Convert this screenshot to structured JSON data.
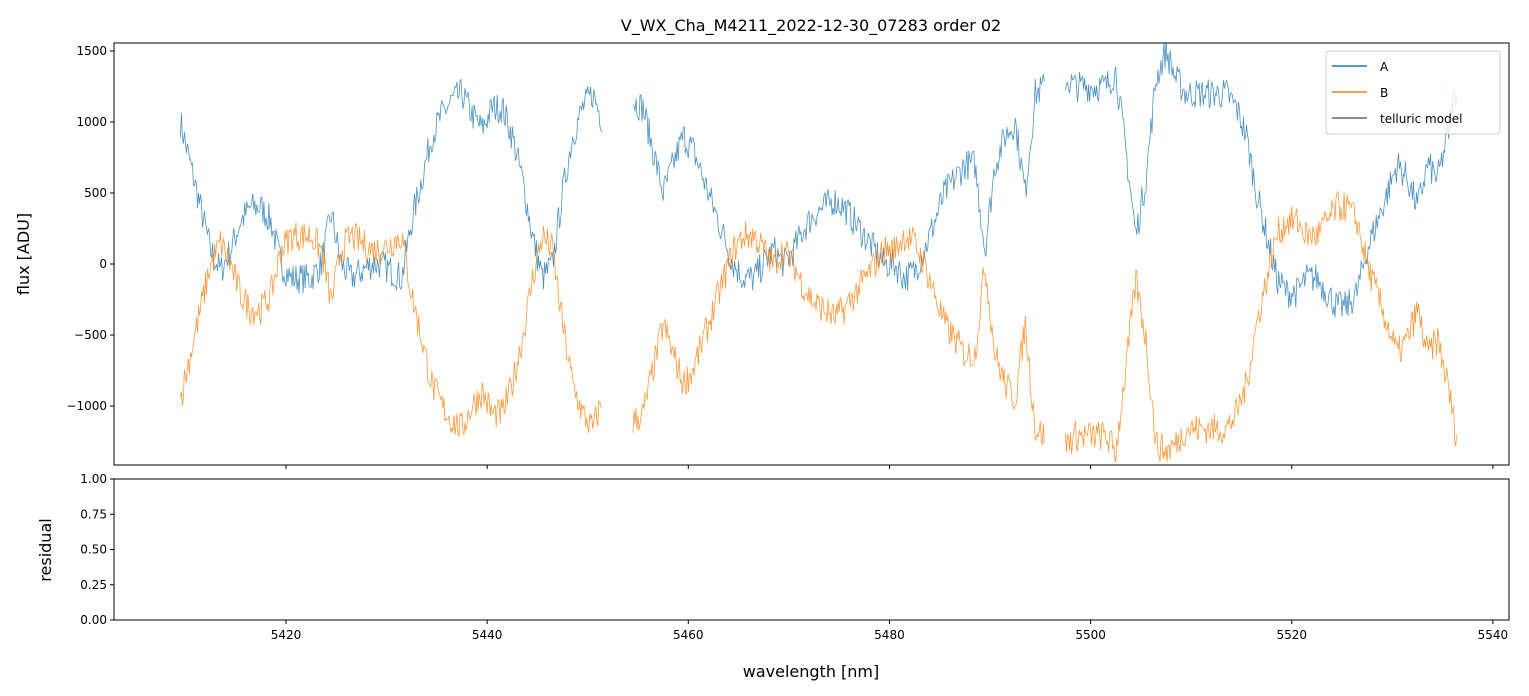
{
  "chart_data": [
    {
      "type": "line",
      "title": "V_WX_Cha_M4211_2022-12-30_07283  order 02",
      "xlabel": "",
      "ylabel": "flux [ADU]",
      "xlim": [
        5402.9,
        5541.6
      ],
      "ylim": [
        -1415,
        1556
      ],
      "xticks": [
        5420,
        5440,
        5460,
        5480,
        5500,
        5520,
        5540
      ],
      "yticks": [
        -1000,
        -500,
        0,
        500,
        1000,
        1500
      ],
      "ytick_labels": [
        "−1000",
        "−500",
        "0",
        "500",
        "1000",
        "1500"
      ],
      "legend": {
        "placement": "top-right",
        "entries": [
          "A",
          "B",
          "telluric model"
        ]
      },
      "colors": {
        "A": "#1f77b4",
        "B": "#ff7f0e",
        "telluric model": "#666666"
      },
      "x_start": 5409.5,
      "x_step": 1,
      "series": [
        {
          "name": "A",
          "values": [
            1000,
            700,
            400,
            100,
            -50,
            100,
            300,
            400,
            400,
            300,
            0,
            -100,
            -100,
            -100,
            0,
            350,
            0,
            -100,
            -50,
            0,
            0,
            -50,
            -100,
            300,
            600,
            900,
            1050,
            1150,
            1200,
            1050,
            950,
            1100,
            1100,
            900,
            600,
            200,
            -100,
            0,
            500,
            900,
            1100,
            1200,
            1000,
            null,
            null,
            1150,
            1100,
            800,
            500,
            700,
            900,
            800,
            600,
            400,
            200,
            0,
            -100,
            -100,
            0,
            100,
            0,
            100,
            250,
            350,
            400,
            450,
            400,
            300,
            200,
            100,
            0,
            0,
            -100,
            -50,
            100,
            300,
            500,
            600,
            700,
            700,
            100,
            700,
            900,
            1000,
            500,
            1200,
            1250,
            null,
            1300,
            1250,
            1250,
            1250,
            1250,
            1350,
            800,
            200,
            600,
            1300,
            1500,
            1300,
            1200,
            1200,
            1200,
            1200,
            1200,
            1100,
            900,
            500,
            200,
            -100,
            -200,
            -200,
            -100,
            -100,
            -200,
            -300,
            -300,
            -200,
            100,
            300,
            500,
            700,
            600,
            400,
            700,
            600,
            900,
            1300
          ]
        },
        {
          "name": "B",
          "values": [
            -950,
            -635,
            -320,
            -5,
            150,
            -5,
            -215,
            -320,
            -320,
            -215,
            100,
            200,
            200,
            200,
            100,
            -265,
            100,
            200,
            150,
            100,
            100,
            150,
            200,
            -215,
            -530,
            -845,
            -1000,
            -1105,
            -1160,
            -1000,
            -900,
            -1055,
            -1055,
            -845,
            -530,
            -110,
            200,
            100,
            -425,
            -845,
            -1055,
            -1160,
            -950,
            null,
            null,
            -1110,
            -1055,
            -740,
            -425,
            -635,
            -845,
            -740,
            -530,
            -320,
            -110,
            100,
            200,
            200,
            100,
            -5,
            100,
            -5,
            -165,
            -270,
            -320,
            -375,
            -320,
            -215,
            -110,
            -5,
            100,
            100,
            200,
            150,
            -5,
            -215,
            -425,
            -530,
            -635,
            -635,
            -5,
            -635,
            -845,
            -950,
            -425,
            -1160,
            -1210,
            null,
            -1265,
            -1210,
            -1210,
            -1210,
            -1210,
            -1320,
            -740,
            -110,
            -530,
            -1265,
            -1320,
            -1265,
            -1160,
            -1160,
            -1160,
            -1160,
            -1160,
            -1055,
            -845,
            -425,
            -110,
            200,
            300,
            300,
            200,
            200,
            300,
            400,
            400,
            300,
            -5,
            -215,
            -425,
            -635,
            -530,
            -320,
            -635,
            -530,
            -845,
            -1265
          ]
        }
      ]
    },
    {
      "type": "line",
      "title": "",
      "xlabel": "wavelength [nm]",
      "ylabel": "residual",
      "xlim": [
        5402.9,
        5541.6
      ],
      "ylim": [
        0,
        1
      ],
      "xticks": [
        5420,
        5440,
        5460,
        5480,
        5500,
        5520,
        5540
      ],
      "xtick_labels": [
        "5420",
        "5440",
        "5460",
        "5480",
        "5500",
        "5520",
        "5540"
      ],
      "yticks": [
        0,
        0.25,
        0.5,
        0.75,
        1
      ],
      "ytick_labels": [
        "0.00",
        "0.25",
        "0.50",
        "0.75",
        "1.00"
      ],
      "series": []
    }
  ]
}
